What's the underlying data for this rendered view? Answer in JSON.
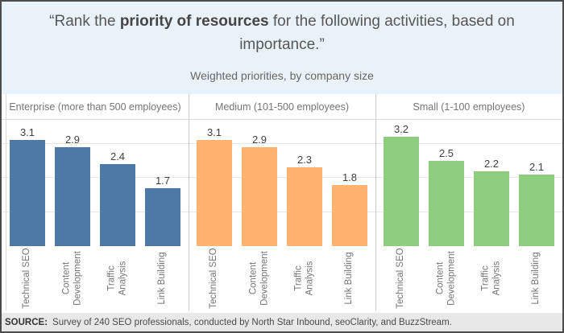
{
  "title": {
    "open_quote": "“",
    "prefix": "Rank the ",
    "bold": "priority of resources",
    "suffix": " for the following activities, based on importance.",
    "close_quote": "”"
  },
  "subtitle": "Weighted priorities, by company size",
  "footer": {
    "source_label": "SOURCE:",
    "source_text": "Survey of 240 SEO professionals, conducted by North Star Inbound, seoClarity, and BuzzStream."
  },
  "colors": {
    "title_background": "#e9f2f8",
    "chart_background": "#ffffff",
    "footer_background": "#e8e8e8",
    "enterprise_bar": "#4d79a7",
    "medium_bar": "#fdb470",
    "small_bar": "#8cce7d",
    "gridline": "#e6e6e6",
    "panel_divider": "#cccccc",
    "frame_border": "#4b4b4b"
  },
  "chart_data": {
    "type": "bar",
    "title": "Weighted priorities, by company size",
    "categories": [
      "Technical SEO",
      "Content Development",
      "Traffic Analysis",
      "Link Building"
    ],
    "category_label_lines": [
      [
        "Technical SEO"
      ],
      [
        "Content",
        "Development"
      ],
      [
        "Traffic",
        "Analysis"
      ],
      [
        "Link Building"
      ]
    ],
    "series": [
      {
        "name": "Enterprise (more than 500 employees)",
        "color": "#4d79a7",
        "values": [
          3.1,
          2.9,
          2.4,
          1.7
        ]
      },
      {
        "name": "Medium (101-500 employees)",
        "color": "#fdb470",
        "values": [
          3.1,
          2.9,
          2.3,
          1.8
        ]
      },
      {
        "name": "Small (1-100 employees)",
        "color": "#8cce7d",
        "values": [
          3.2,
          2.5,
          2.2,
          2.1
        ]
      }
    ],
    "ylim": [
      0,
      3.7
    ],
    "gridlines": [
      1,
      2,
      3
    ],
    "value_labels": true,
    "value_label_format": "0.1f",
    "legend_position": "panel-headers",
    "grid": true,
    "xlabel": "",
    "ylabel": ""
  }
}
